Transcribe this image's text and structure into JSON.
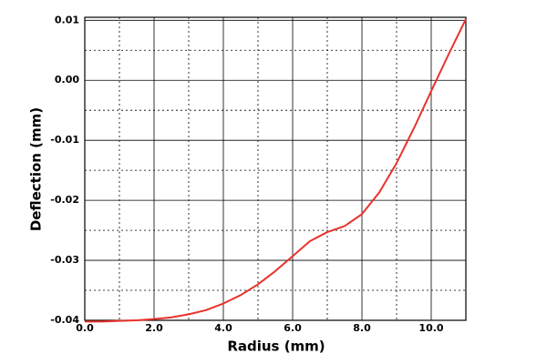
{
  "chart_data": {
    "type": "line",
    "xlabel": "Radius (mm)",
    "ylabel": "Deflection (mm)",
    "x": [
      0,
      0.5,
      1,
      1.5,
      2,
      2.5,
      3,
      3.5,
      4,
      4.5,
      5,
      5.5,
      6,
      6.5,
      7,
      7.5,
      8,
      8.5,
      9,
      9.5,
      10,
      10.5,
      11
    ],
    "series": [
      {
        "color": "#e8322c",
        "values": [
          -0.0402,
          -0.0402,
          -0.0401,
          -0.04,
          -0.0398,
          -0.0395,
          -0.039,
          -0.0383,
          -0.0372,
          -0.0358,
          -0.034,
          -0.0318,
          -0.0293,
          -0.0268,
          -0.0253,
          -0.0243,
          -0.0223,
          -0.0187,
          -0.0138,
          -0.008,
          -0.0018,
          0.0043,
          0.0102
        ]
      }
    ],
    "xlim": [
      0,
      11
    ],
    "ylim": [
      -0.04,
      0.0105
    ],
    "xticks": [
      {
        "value": 0,
        "label": "0.0"
      },
      {
        "value": 2,
        "label": "2.0"
      },
      {
        "value": 4,
        "label": "4.0"
      },
      {
        "value": 6,
        "label": "6.0"
      },
      {
        "value": 8,
        "label": "8.0"
      },
      {
        "value": 10,
        "label": "10.0"
      }
    ],
    "yticks": [
      0.01,
      {
        "value": 0,
        "label": "0.00"
      },
      -0.01,
      -0.02,
      -0.03,
      -0.04
    ],
    "xminorticks": [
      1,
      3,
      5,
      7,
      9,
      11
    ],
    "yminorticks": [
      0.005,
      -0.005,
      -0.015,
      -0.025,
      -0.035
    ],
    "grid": true
  }
}
